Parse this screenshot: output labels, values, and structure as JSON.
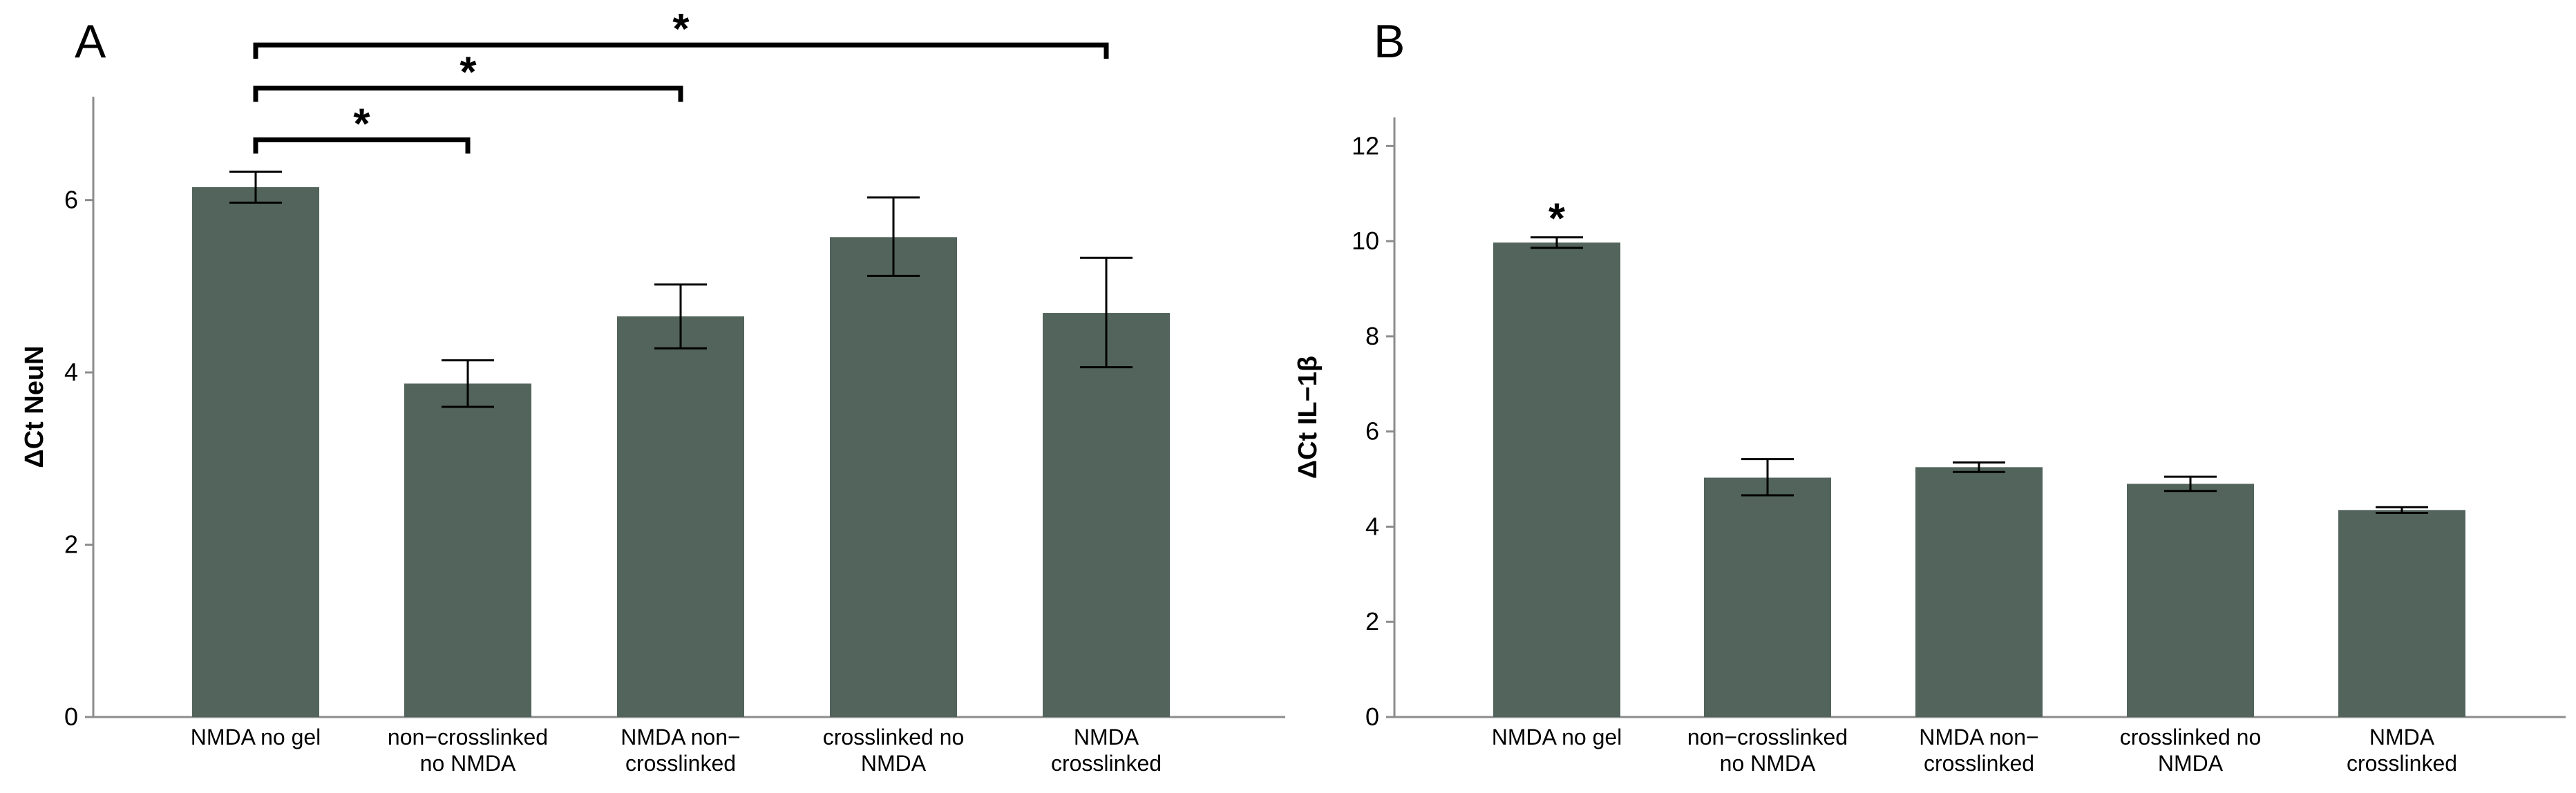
{
  "colors": {
    "bar": "#52645c",
    "axis": "#8c8c8c",
    "ink": "#000000"
  },
  "chart_data": [
    {
      "panel": "A",
      "type": "bar",
      "title": "",
      "xlabel": "",
      "ylabel": "ΔCt NeuN",
      "ylim": [
        0,
        7.2
      ],
      "yticks": [
        0,
        2,
        4,
        6
      ],
      "grid": false,
      "categories": [
        [
          "NMDA no gel"
        ],
        [
          "non−crosslinked",
          "no NMDA"
        ],
        [
          "NMDA non−",
          "crosslinked"
        ],
        [
          "crosslinked no",
          "NMDA"
        ],
        [
          "NMDA",
          "crosslinked"
        ]
      ],
      "values": [
        6.15,
        3.87,
        4.65,
        5.57,
        4.69
      ],
      "error_low": [
        5.97,
        3.6,
        4.28,
        5.12,
        4.06
      ],
      "error_high": [
        6.33,
        4.14,
        5.02,
        6.03,
        5.33
      ],
      "significance": [
        {
          "from": 0,
          "to": 1,
          "level": 6.7,
          "label": "*"
        },
        {
          "from": 0,
          "to": 2,
          "level": 7.3,
          "label": "*"
        },
        {
          "from": 0,
          "to": 4,
          "level": 7.8,
          "label": "*"
        }
      ]
    },
    {
      "panel": "B",
      "type": "bar",
      "title": "",
      "xlabel": "",
      "ylabel": "ΔCt IL−1β",
      "ylim": [
        0,
        12.6
      ],
      "yticks": [
        0,
        2,
        4,
        6,
        8,
        10,
        12
      ],
      "grid": false,
      "categories": [
        [
          "NMDA no gel"
        ],
        [
          "non−crosslinked",
          "no NMDA"
        ],
        [
          "NMDA non−",
          "crosslinked"
        ],
        [
          "crosslinked no",
          "NMDA"
        ],
        [
          "NMDA",
          "crosslinked"
        ]
      ],
      "values": [
        9.97,
        5.03,
        5.25,
        4.9,
        4.35
      ],
      "error_low": [
        9.86,
        4.66,
        5.15,
        4.75,
        4.29
      ],
      "error_high": [
        10.08,
        5.42,
        5.35,
        5.05,
        4.41
      ],
      "bar_labels": [
        "*",
        "",
        "",
        "",
        ""
      ]
    }
  ]
}
